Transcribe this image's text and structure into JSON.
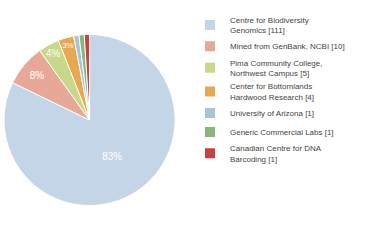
{
  "chart_data": {
    "type": "pie",
    "categories": [
      "Centre for Biodiversity\nGenomics [111]",
      "Mined from GenBank, NCBI [10]",
      "Pima Community College,\nNorthwest Campus [5]",
      "Center for Bottomlands\nHardwood Research [4]",
      "University of Arizona [1]",
      "Generic Commercial Labs [1]",
      "Canadian Centre for DNA\nBarcoding [1]"
    ],
    "values": [
      83,
      8,
      4,
      3,
      1,
      1,
      1
    ],
    "value_labels": [
      "83%",
      "8%",
      "4%",
      "3%",
      null,
      null,
      null
    ],
    "colors": [
      "#c5d5e8",
      "#e8a898",
      "#c8d888",
      "#e8a850",
      "#a8c4d8",
      "#88b878",
      "#c84040"
    ],
    "data_labels": true,
    "legend": "right"
  }
}
